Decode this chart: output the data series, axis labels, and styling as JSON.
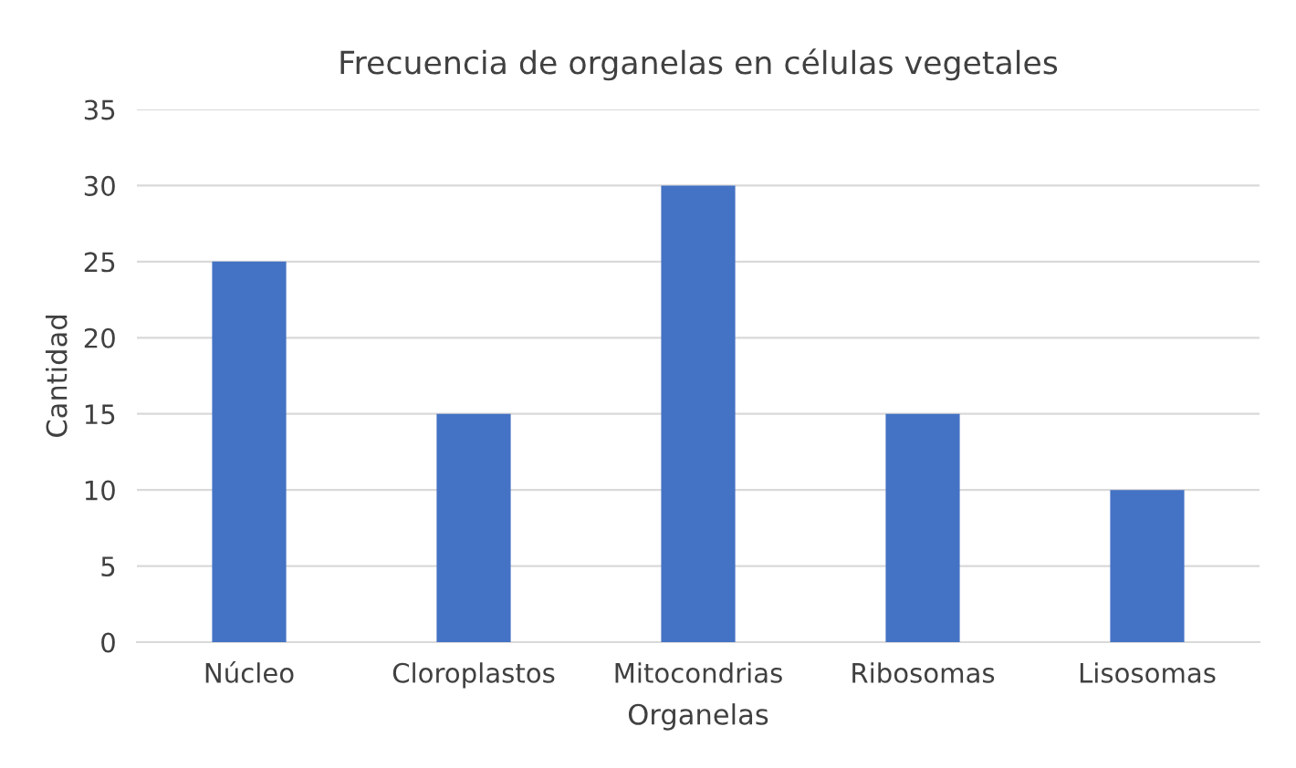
{
  "chart_data": {
    "type": "bar",
    "title": "Frecuencia de organelas en células vegetales",
    "xlabel": "Organelas",
    "ylabel": "Cantidad",
    "categories": [
      "Núcleo",
      "Cloroplastos",
      "Mitocondrias",
      "Ribosomas",
      "Lisosomas"
    ],
    "series": [
      {
        "color": "#4472c4",
        "values": [
          25,
          15,
          30,
          15,
          10
        ]
      }
    ],
    "ylim": [
      0,
      35
    ],
    "yticks": [
      0,
      5,
      10,
      15,
      20,
      25,
      30,
      35
    ],
    "grid": "y",
    "legend": false
  }
}
